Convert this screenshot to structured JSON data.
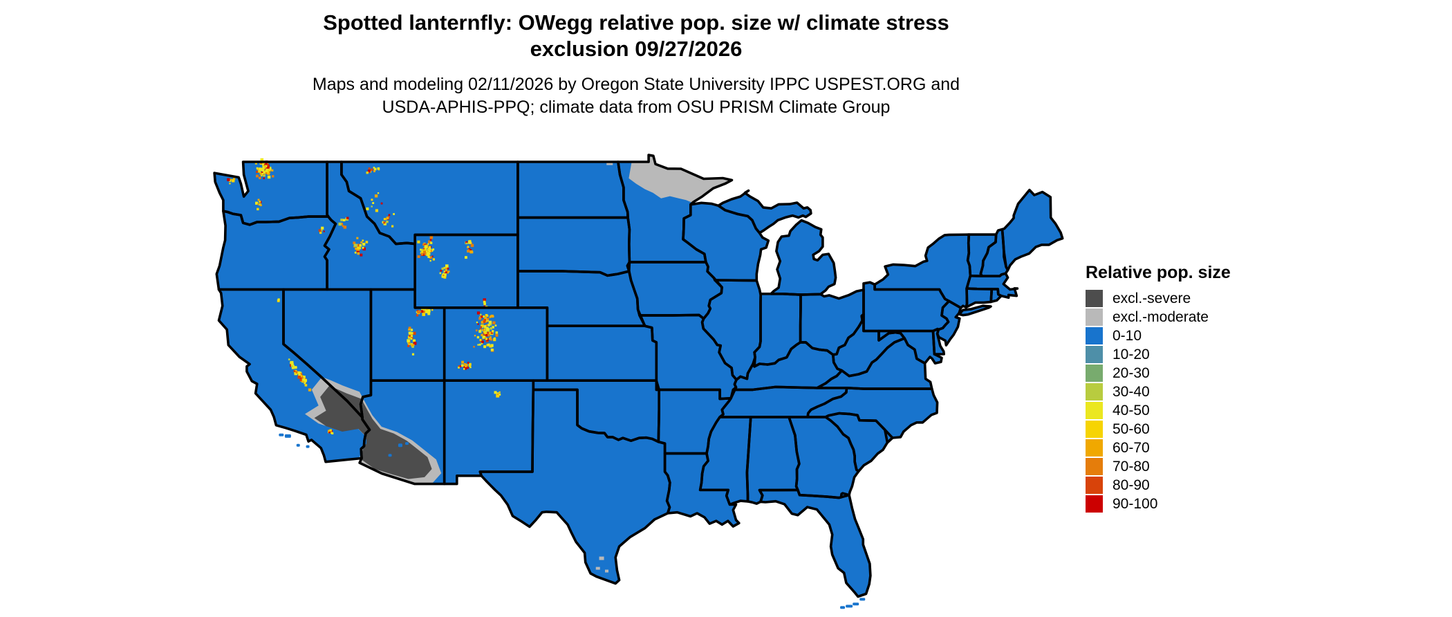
{
  "header": {
    "title_line1": "Spotted lanternfly: OWegg relative pop. size w/ climate stress",
    "title_line2": "exclusion 09/27/2026",
    "subtitle_line1": "Maps and modeling 02/11/2026 by Oregon State University IPPC USPEST.ORG and",
    "subtitle_line2": "USDA-APHIS-PPQ; climate data from OSU PRISM Climate Group"
  },
  "legend": {
    "title": "Relative pop. size",
    "items": [
      {
        "label": "excl.-severe",
        "color": "#4d4d4d"
      },
      {
        "label": "excl.-moderate",
        "color": "#b9b9b9"
      },
      {
        "label": "0-10",
        "color": "#1874cd"
      },
      {
        "label": "10-20",
        "color": "#4e8fa8"
      },
      {
        "label": "20-30",
        "color": "#78ab6e"
      },
      {
        "label": "30-40",
        "color": "#b8cc3f"
      },
      {
        "label": "40-50",
        "color": "#ebe720"
      },
      {
        "label": "50-60",
        "color": "#f6d403"
      },
      {
        "label": "60-70",
        "color": "#f0a800"
      },
      {
        "label": "70-80",
        "color": "#e57d0b"
      },
      {
        "label": "80-90",
        "color": "#d8430a"
      },
      {
        "label": "90-100",
        "color": "#cc0000"
      }
    ]
  },
  "map": {
    "background": "#ffffff",
    "base_category": "0-10",
    "base_color": "#1874cd",
    "border_color": "#000000",
    "severe_color": "#4d4d4d",
    "moderate_color": "#b9b9b9",
    "excluded_regions": [
      {
        "name": "sonoran-mojave-desert-southwest",
        "category": "excl.-severe",
        "fringe": "excl.-moderate"
      },
      {
        "name": "northern-minnesota",
        "category": "excl.-moderate"
      },
      {
        "name": "south-texas-specks",
        "category": "excl.-moderate"
      }
    ],
    "hotspot_regions": [
      "north-cascades-wa",
      "olympics-wa",
      "south-cascades-wa",
      "wallowa-or",
      "central-idaho",
      "bitterroot-id-mt",
      "sw-montana",
      "glacier-mt",
      "yellowstone-absaroka-wy",
      "wind-river-wy",
      "bighorn-wy",
      "uinta-ut",
      "wasatch-south-utah",
      "colorado-rockies",
      "san-juan-co",
      "sierra-nevada-ca",
      "san-bernardino-ca",
      "sangre-de-cristo-nm",
      "ne-california",
      "medicine-bow-wy"
    ],
    "hotspot_palette": [
      {
        "color": "#ece820",
        "weight": 40
      },
      {
        "color": "#f6d403",
        "weight": 14
      },
      {
        "color": "#f0a800",
        "weight": 12
      },
      {
        "color": "#e57d0b",
        "weight": 10
      },
      {
        "color": "#d8430a",
        "weight": 8
      },
      {
        "color": "#cc0000",
        "weight": 11
      },
      {
        "color": "#b8cc3f",
        "weight": 5
      }
    ]
  }
}
